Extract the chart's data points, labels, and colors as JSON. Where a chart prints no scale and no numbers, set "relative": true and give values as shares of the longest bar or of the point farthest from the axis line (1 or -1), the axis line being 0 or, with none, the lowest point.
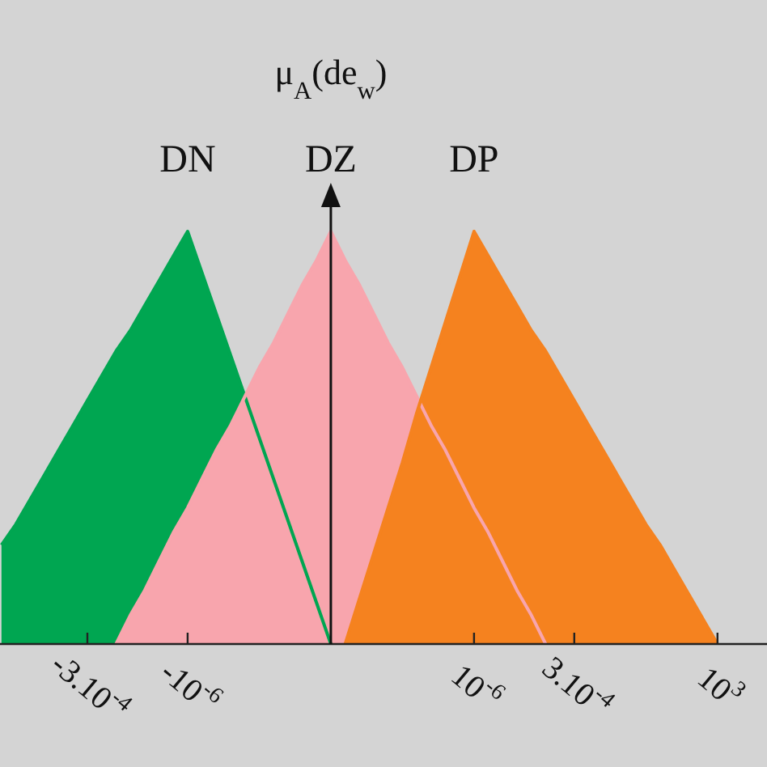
{
  "chart_data": {
    "type": "area",
    "relative": true,
    "ylabel": "μ$_{A}$(de$_{w}$)",
    "categories": [
      null,
      null,
      null,
      null,
      null,
      null,
      "-3.10$^{-4}$",
      null,
      null,
      null,
      null,
      null,
      null,
      "-10$^{-6}$",
      null,
      null,
      null,
      null,
      null,
      null,
      null,
      null,
      null,
      null,
      null,
      null,
      null,
      null,
      null,
      null,
      null,
      null,
      null,
      "10$^{-6}$",
      null,
      null,
      null,
      null,
      null,
      null,
      "3.10$^{-4}$",
      null,
      null,
      null,
      null,
      null,
      null,
      null,
      null,
      null,
      "10$^{3}$"
    ],
    "series": [
      {
        "name": "DN",
        "color": "#00a651",
        "values": [
          0.24,
          0.29,
          0.35,
          0.41,
          0.47,
          0.53,
          0.59,
          0.65,
          0.71,
          0.76,
          0.82,
          0.88,
          0.94,
          1,
          0.9,
          0.8,
          0.7,
          0.6,
          0.5,
          0.4,
          0.3,
          0.2,
          0.1,
          0,
          null,
          null,
          null,
          null,
          null,
          null,
          null,
          null,
          null,
          null,
          null,
          null,
          null,
          null,
          null,
          null,
          null,
          null,
          null,
          null,
          null,
          null,
          null,
          null,
          null,
          null,
          null
        ]
      },
      {
        "name": "DZ",
        "color": "#f8a5ad",
        "values": [
          null,
          null,
          null,
          null,
          null,
          null,
          null,
          null,
          0,
          0.07,
          0.13,
          0.2,
          0.27,
          0.33,
          0.4,
          0.47,
          0.53,
          0.6,
          0.67,
          0.73,
          0.8,
          0.87,
          0.93,
          1,
          0.93,
          0.87,
          0.8,
          0.73,
          0.67,
          0.6,
          0.53,
          0.47,
          0.4,
          0.33,
          0.27,
          0.2,
          0.13,
          0.07,
          0,
          null,
          null,
          null,
          null,
          null,
          null,
          null,
          null,
          null,
          null,
          null,
          null
        ]
      },
      {
        "name": "DP",
        "color": "#f5821f",
        "values": [
          null,
          null,
          null,
          null,
          null,
          null,
          null,
          null,
          null,
          null,
          null,
          null,
          null,
          null,
          null,
          null,
          null,
          null,
          null,
          null,
          null,
          null,
          null,
          null,
          0,
          0.11,
          0.22,
          0.33,
          0.44,
          0.56,
          0.67,
          0.78,
          0.89,
          1,
          0.94,
          0.88,
          0.82,
          0.76,
          0.71,
          0.65,
          0.59,
          0.53,
          0.47,
          0.41,
          0.35,
          0.29,
          0.24,
          0.18,
          0.12,
          0.06,
          0
        ]
      }
    ]
  }
}
